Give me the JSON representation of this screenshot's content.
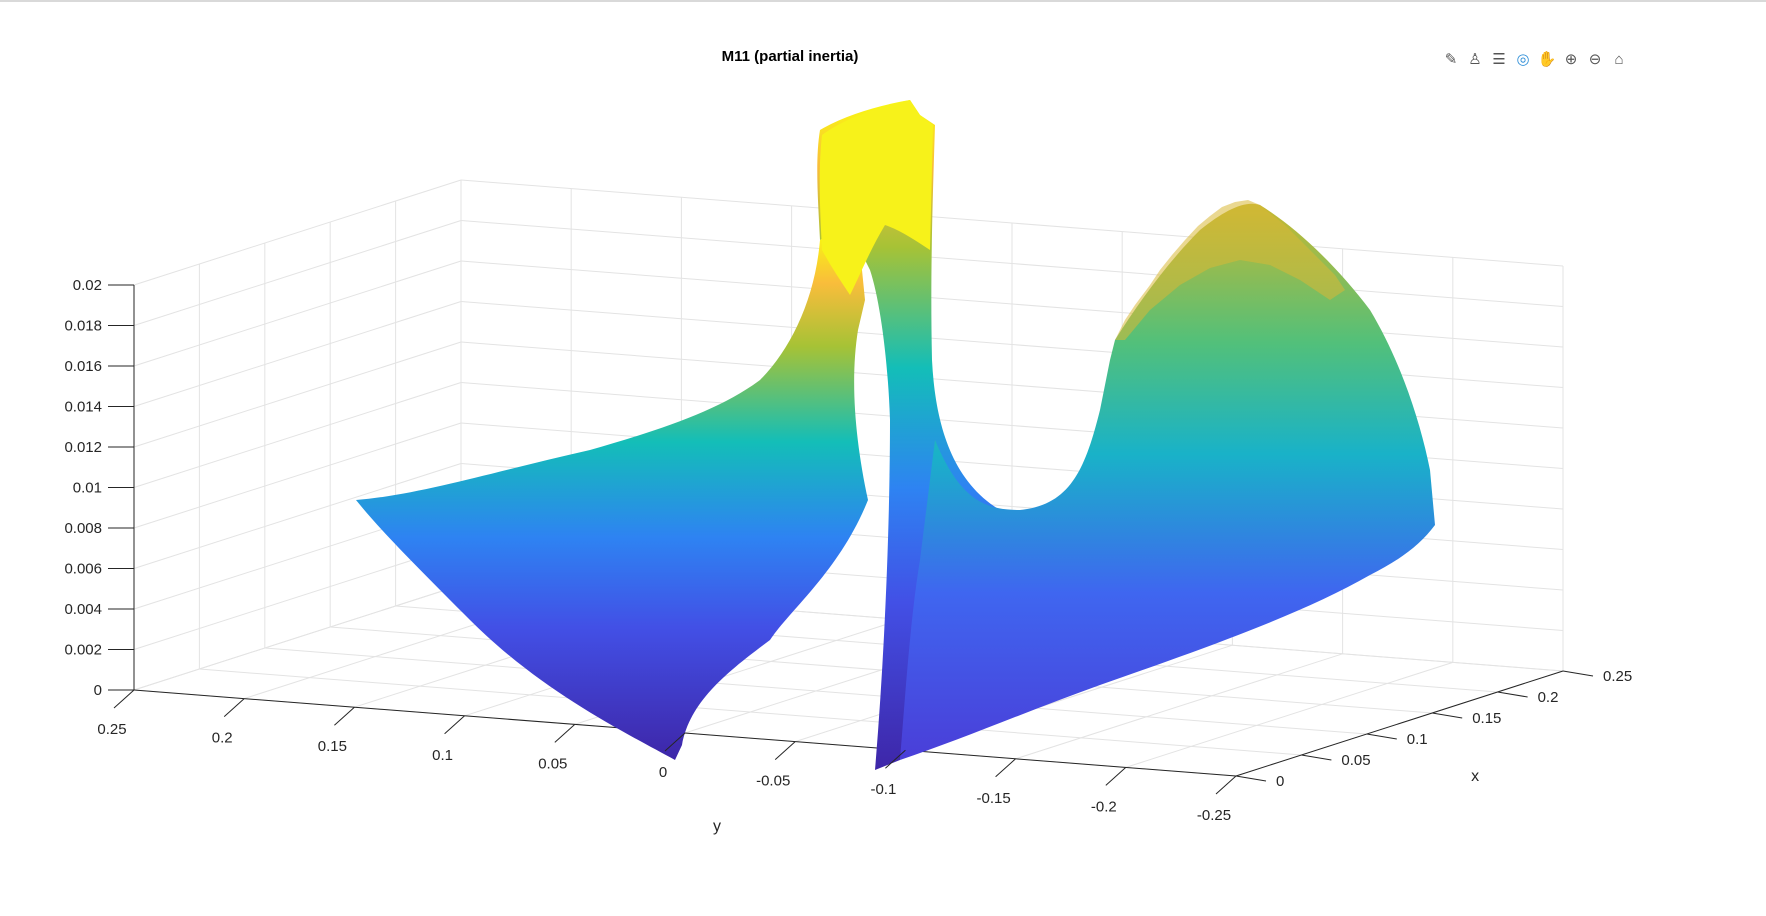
{
  "toolbar": {
    "items": [
      {
        "name": "edit-plot-icon",
        "glyph": "✎"
      },
      {
        "name": "brush-icon",
        "glyph": "♙"
      },
      {
        "name": "data-tips-icon",
        "glyph": "☰"
      },
      {
        "name": "rotate-3d-icon",
        "glyph": "◎"
      },
      {
        "name": "pan-hand-icon",
        "glyph": "✋"
      },
      {
        "name": "zoom-in-icon",
        "glyph": "⊕"
      },
      {
        "name": "zoom-out-icon",
        "glyph": "⊖"
      },
      {
        "name": "home-icon",
        "glyph": "⌂"
      }
    ]
  },
  "chart_data": {
    "type": "surface",
    "title": "M11 (partial inertia)",
    "xlabel": "x",
    "ylabel": "y",
    "zlabel": "",
    "xlim": [
      0,
      0.25
    ],
    "ylim": [
      -0.25,
      0.25
    ],
    "zlim": [
      0,
      0.02
    ],
    "x_ticks": [
      "0",
      "0.05",
      "0.1",
      "0.15",
      "0.2",
      "0.25"
    ],
    "y_ticks": [
      "0.25",
      "0.2",
      "0.15",
      "0.1",
      "0.05",
      "0",
      "-0.05",
      "-0.1",
      "-0.15",
      "-0.2",
      "-0.25"
    ],
    "z_ticks": [
      "0",
      "0.002",
      "0.004",
      "0.006",
      "0.008",
      "0.01",
      "0.012",
      "0.014",
      "0.016",
      "0.018",
      "0.02"
    ],
    "grid": true,
    "colormap": "parula",
    "colors": {
      "low": "#3e26a8",
      "mid": "#13beb8",
      "high": "#f9fb0e"
    }
  }
}
